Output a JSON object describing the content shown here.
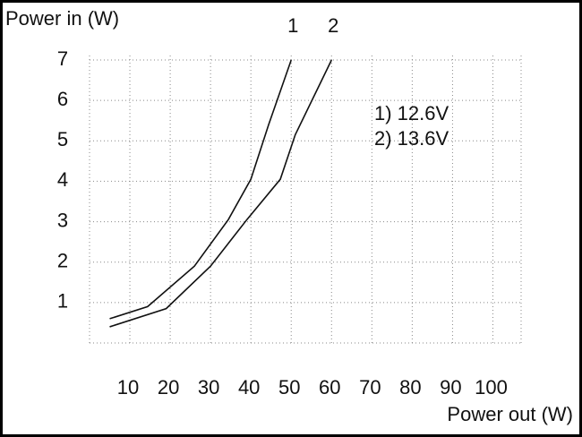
{
  "chart_data": {
    "type": "line",
    "y_label": "Power in (W)",
    "x_label": "Power out (W)",
    "xlim": [
      0,
      107
    ],
    "ylim": [
      0,
      7
    ],
    "xticks": [
      10,
      20,
      30,
      40,
      50,
      60,
      70,
      80,
      90,
      100
    ],
    "yticks": [
      1,
      2,
      3,
      4,
      5,
      6,
      7
    ],
    "grid": true,
    "series": [
      {
        "name": "1) 12.6V",
        "label": "1",
        "color": "#111111",
        "x": [
          5,
          14.4,
          26,
          34.4,
          40,
          44.4,
          50
        ],
        "values": [
          0.6,
          0.9,
          1.9,
          3.05,
          4.05,
          5.4,
          7
        ]
      },
      {
        "name": "2) 13.6V",
        "label": "2",
        "color": "#111111",
        "x": [
          5,
          19,
          30,
          39,
          47.3,
          51,
          60
        ],
        "values": [
          0.4,
          0.85,
          1.9,
          3.05,
          4.05,
          5.15,
          7
        ]
      }
    ]
  }
}
